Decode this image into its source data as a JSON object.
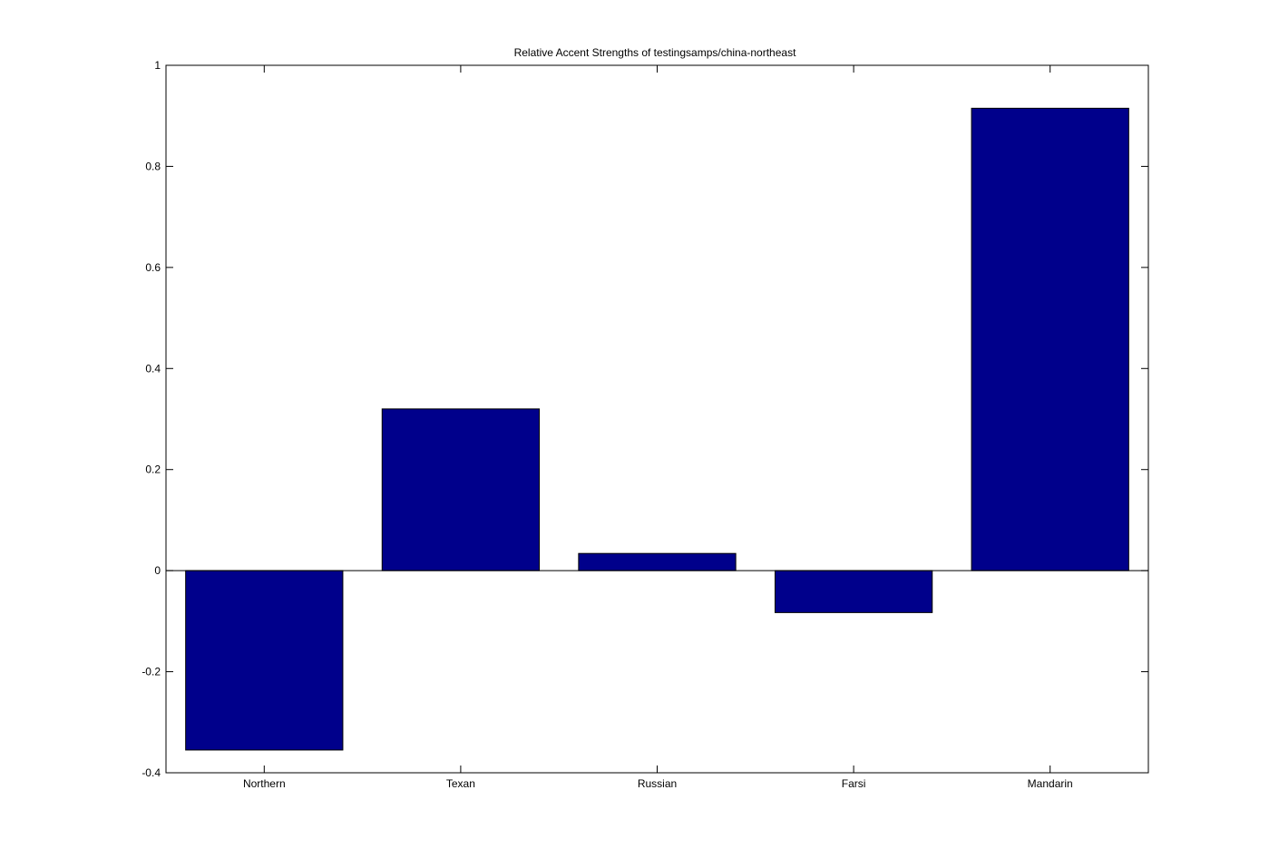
{
  "chart_data": {
    "type": "bar",
    "title": "Relative Accent Strengths of testingsamps/china-northeast",
    "xlabel": "",
    "ylabel": "",
    "categories": [
      "Northern",
      "Texan",
      "Russian",
      "Farsi",
      "Mandarin"
    ],
    "values": [
      -0.355,
      0.32,
      0.034,
      -0.083,
      0.915
    ],
    "ylim": [
      -0.4,
      1
    ],
    "yticks": [
      "1",
      "0.8",
      "0.6",
      "0.4",
      "0.2",
      "0",
      "-0.2",
      "-0.4"
    ],
    "ytick_values": [
      1,
      0.8,
      0.6,
      0.4,
      0.2,
      0,
      -0.2,
      -0.4
    ],
    "grid": false,
    "legend": "none",
    "bar_color": "#00008b",
    "background": "#ffffff"
  }
}
